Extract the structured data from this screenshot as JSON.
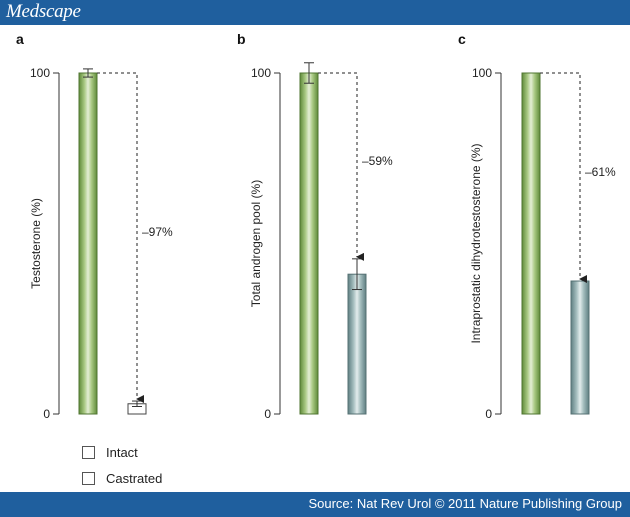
{
  "brand": {
    "logo_text": "Medscape"
  },
  "footer": {
    "source": "Source: Nat Rev Urol © 2011 Nature Publishing Group"
  },
  "legend": {
    "items": [
      "Intact",
      "Castrated"
    ]
  },
  "colors": {
    "intact": "#7aa34f",
    "castrated": "#7d9b9d",
    "brand": "#1f5f9e"
  },
  "chart_data": [
    {
      "type": "bar",
      "panel": "a",
      "ylabel": "Testosterone (%)",
      "ylim": [
        0,
        100
      ],
      "yticks": [
        0,
        100
      ],
      "categories": [
        "Intact",
        "Castrated"
      ],
      "values": [
        100,
        3
      ],
      "errors": [
        1.2,
        0.8
      ],
      "annotation": "–97%"
    },
    {
      "type": "bar",
      "panel": "b",
      "ylabel": "Total androgen pool (%)",
      "ylim": [
        0,
        100
      ],
      "yticks": [
        0,
        100
      ],
      "categories": [
        "Intact",
        "Castrated"
      ],
      "values": [
        100,
        41
      ],
      "errors": [
        3,
        4.5
      ],
      "annotation": "–59%"
    },
    {
      "type": "bar",
      "panel": "c",
      "ylabel": "Intraprostatic dihydrotestosterone (%)",
      "ylim": [
        0,
        100
      ],
      "yticks": [
        0,
        100
      ],
      "categories": [
        "Intact",
        "Castrated"
      ],
      "values": [
        100,
        39
      ],
      "errors": [
        0,
        0
      ],
      "annotation": "–61%"
    }
  ]
}
